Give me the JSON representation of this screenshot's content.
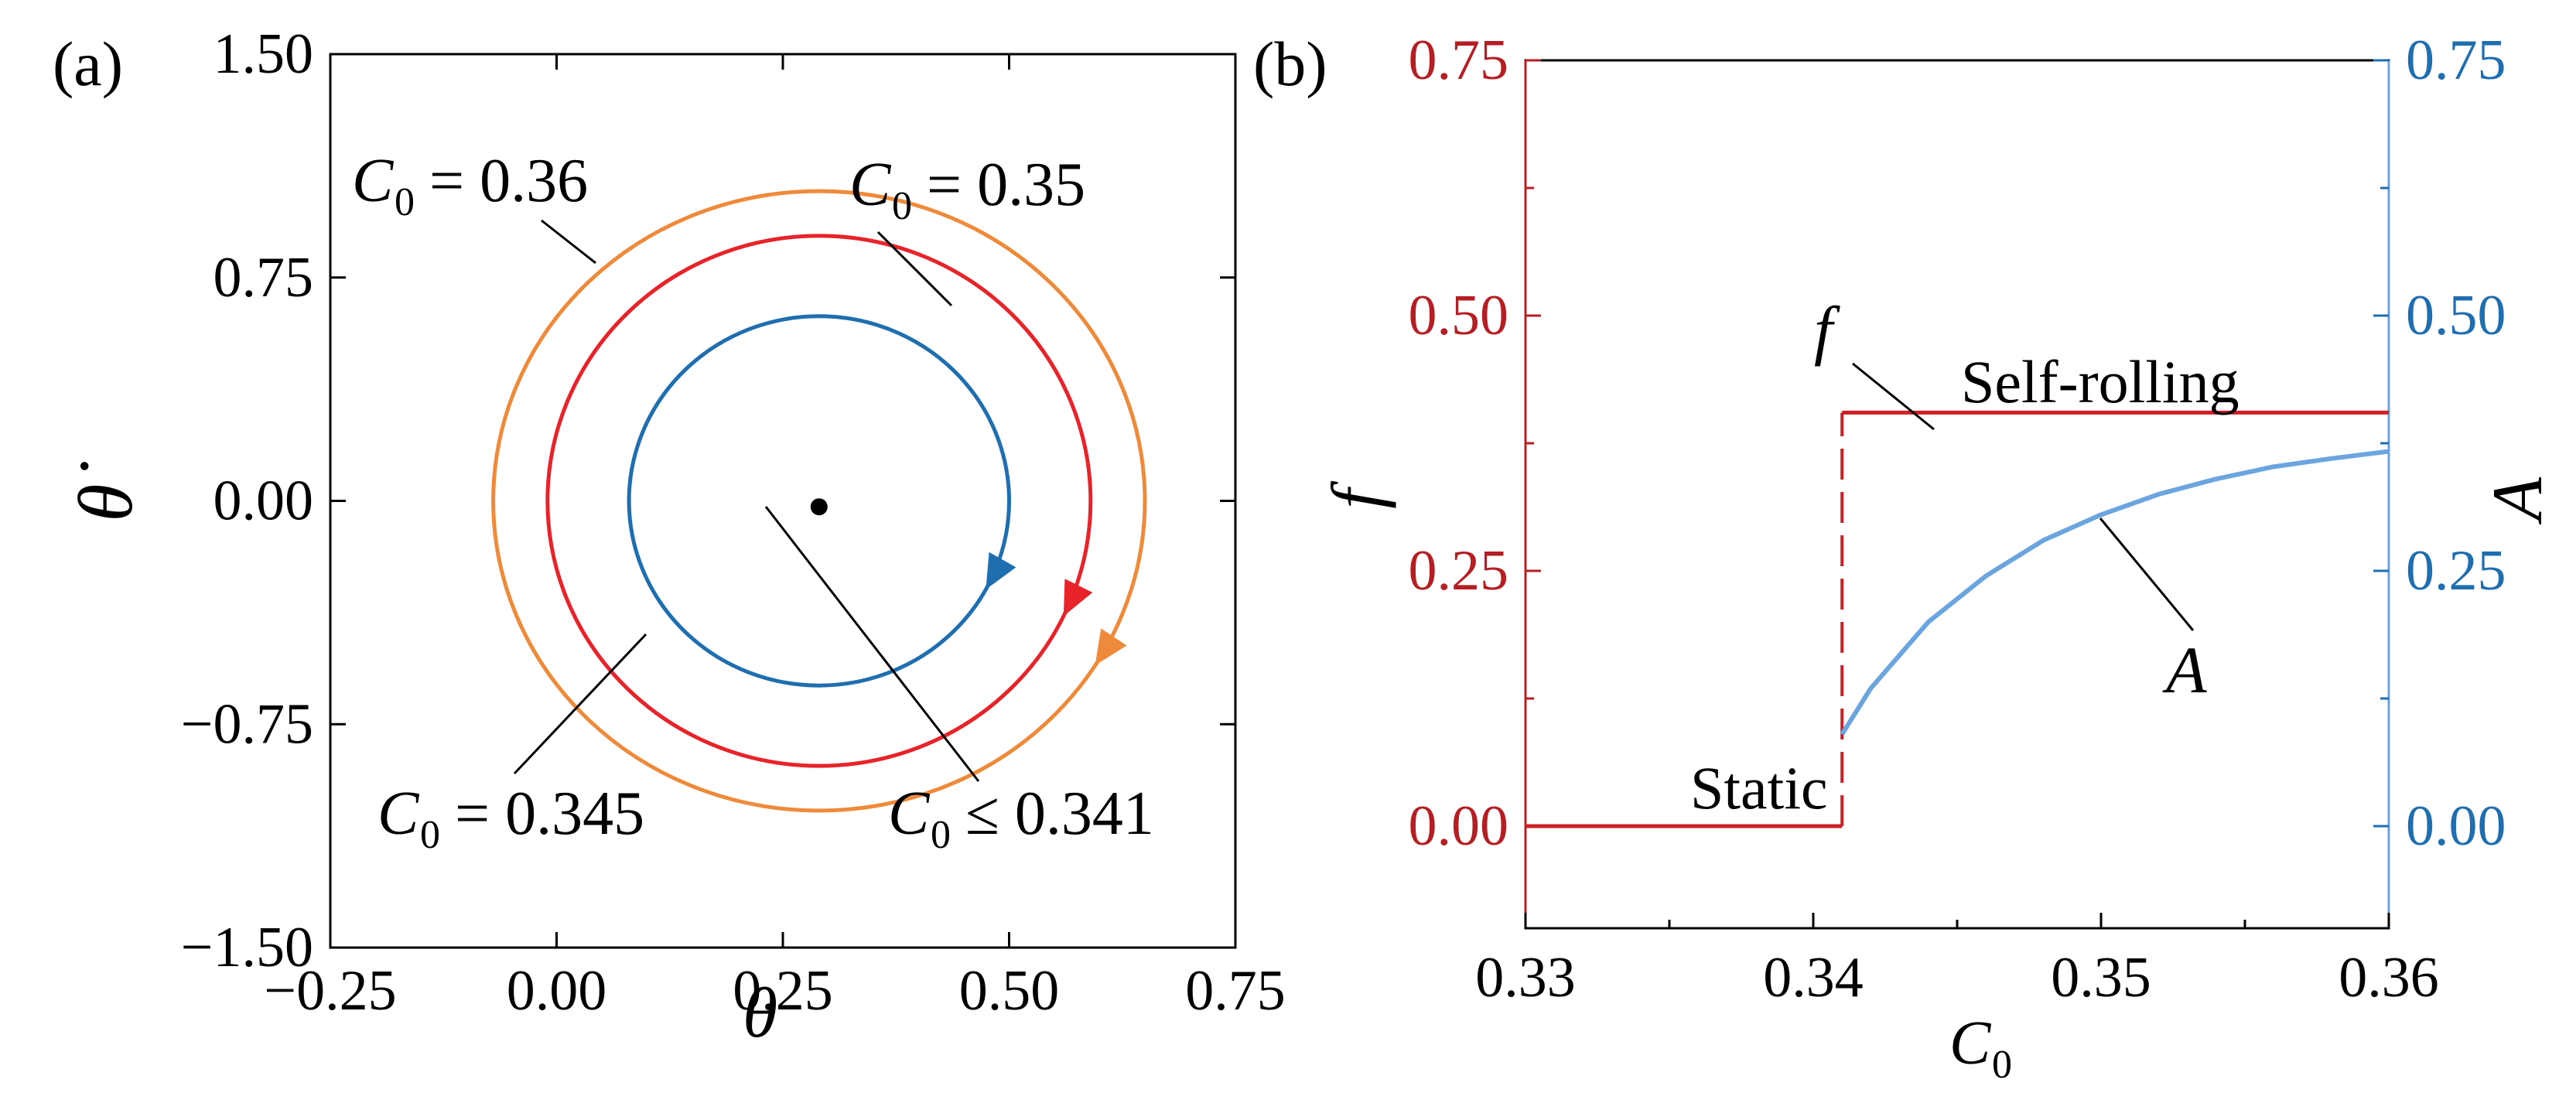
{
  "chart_data": [
    {
      "panel": "(a)",
      "type": "line",
      "xlabel": "θ",
      "ylabel": "θ̇",
      "xlim": [
        -0.25,
        0.75
      ],
      "ylim": [
        -1.5,
        1.5
      ],
      "xticks": [
        "−0.25",
        "0.00",
        "0.25",
        "0.50",
        "0.75"
      ],
      "yticks": [
        "1.50",
        "0.75",
        "0.00",
        "−0.75",
        "−1.50"
      ],
      "series": [
        {
          "name": "C0 = 0.36",
          "label_text": "= 0.36",
          "color": "#ee8a3a",
          "center": [
            0.29,
            0.0
          ],
          "semi_axes": [
            0.36,
            1.04
          ]
        },
        {
          "name": "C0 = 0.35",
          "label_text": "= 0.35",
          "color": "#e8242a",
          "center": [
            0.29,
            0.0
          ],
          "semi_axes": [
            0.3,
            0.89
          ]
        },
        {
          "name": "C0 = 0.345",
          "label_text": "= 0.345",
          "color": "#1f6fb0",
          "center": [
            0.29,
            0.0
          ],
          "semi_axes": [
            0.21,
            0.62
          ]
        },
        {
          "name": "C0 ≤ 0.341",
          "label_text": "≤ 0.341",
          "color": "#000000",
          "point": [
            0.29,
            -0.02
          ]
        }
      ],
      "annotations": [
        "C",
        "0"
      ]
    },
    {
      "panel": "(b)",
      "type": "line",
      "xlabel": "C",
      "xlabel_sub": "0",
      "ylabel_left": "f",
      "ylabel_right": "A",
      "xlim": [
        0.33,
        0.36
      ],
      "ylim_left": [
        -0.1,
        0.75
      ],
      "ylim_right": [
        -0.1,
        0.75
      ],
      "xticks": [
        "0.33",
        "0.34",
        "0.35",
        "0.36"
      ],
      "yticks_left": [
        "0.75",
        "0.50",
        "0.25",
        "0.00"
      ],
      "yticks_right": [
        "0.75",
        "0.50",
        "0.25",
        "0.00"
      ],
      "left_color": "#b51f24",
      "right_color": "#1f6fb0",
      "series": [
        {
          "name": "f",
          "color": "#cc1f26",
          "x": [
            0.33,
            0.341,
            0.341,
            0.36
          ],
          "y": [
            0.0,
            0.0,
            0.405,
            0.405
          ],
          "jump_at": 0.341
        },
        {
          "name": "A",
          "color": "#6aa5df",
          "x": [
            0.341,
            0.342,
            0.344,
            0.346,
            0.348,
            0.35,
            0.352,
            0.354,
            0.356,
            0.358,
            0.36
          ],
          "y": [
            0.09,
            0.135,
            0.2,
            0.245,
            0.28,
            0.305,
            0.325,
            0.34,
            0.352,
            0.36,
            0.367
          ]
        }
      ],
      "annotations": [
        "Static",
        "Self-rolling",
        "f",
        "A"
      ]
    }
  ]
}
